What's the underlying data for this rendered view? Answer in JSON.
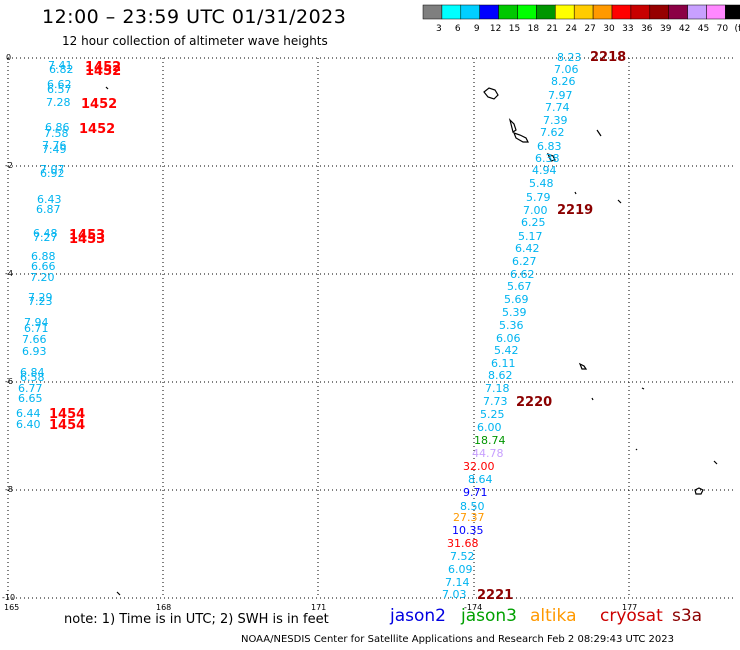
{
  "header": {
    "title": "12:00 – 23:59 UTC 01/31/2023",
    "subtitle": "12 hour collection of altimeter wave heights"
  },
  "colorbar": {
    "labels": [
      "3",
      "6",
      "9",
      "12",
      "15",
      "18",
      "21",
      "24",
      "27",
      "30",
      "33",
      "36",
      "39",
      "42",
      "45",
      "70",
      "(ft)"
    ],
    "colors": [
      "#7f7f7f",
      "#00ffff",
      "#00cfff",
      "#0000ff",
      "#00c800",
      "#00ff00",
      "#009600",
      "#ffff00",
      "#ffcc00",
      "#ff9900",
      "#ff0000",
      "#c80000",
      "#960000",
      "#8b0045",
      "#c8a0ff",
      "#ff88ff",
      "#000000"
    ]
  },
  "axes": {
    "x_ticks": [
      "165",
      "168",
      "171",
      "-174",
      "177"
    ],
    "y_ticks": [
      "0",
      "-2",
      "-4",
      "-6",
      "-8",
      "-10"
    ]
  },
  "track_west": {
    "values": [
      {
        "v": "7.41",
        "c": "#00b4f0"
      },
      {
        "v": "6.82",
        "c": "#00b4f0"
      },
      {
        "v": "6.62",
        "c": "#00b4f0"
      },
      {
        "v": "6.57",
        "c": "#00b4f0"
      },
      {
        "v": "7.28",
        "c": "#00b4f0"
      },
      {
        "v": "6.86",
        "c": "#00b4f0"
      },
      {
        "v": "7.58",
        "c": "#00b4f0"
      },
      {
        "v": "7.76",
        "c": "#00b4f0"
      },
      {
        "v": "7.49",
        "c": "#00b4f0"
      },
      {
        "v": "7.07",
        "c": "#00b4f0"
      },
      {
        "v": "6.92",
        "c": "#00b4f0"
      },
      {
        "v": "6.43",
        "c": "#00b4f0"
      },
      {
        "v": "6.87",
        "c": "#00b4f0"
      },
      {
        "v": "6.48",
        "c": "#00b4f0"
      },
      {
        "v": "7.27",
        "c": "#00b4f0"
      },
      {
        "v": "6.88",
        "c": "#00b4f0"
      },
      {
        "v": "6.66",
        "c": "#00b4f0"
      },
      {
        "v": "7.20",
        "c": "#00b4f0"
      },
      {
        "v": "7.29",
        "c": "#00b4f0"
      },
      {
        "v": "7.23",
        "c": "#00b4f0"
      },
      {
        "v": "7.94",
        "c": "#00b4f0"
      },
      {
        "v": "6.71",
        "c": "#00b4f0"
      },
      {
        "v": "7.66",
        "c": "#00b4f0"
      },
      {
        "v": "6.93",
        "c": "#00b4f0"
      },
      {
        "v": "6.84",
        "c": "#00b4f0"
      },
      {
        "v": "6.58",
        "c": "#00b4f0"
      },
      {
        "v": "6.77",
        "c": "#00b4f0"
      },
      {
        "v": "6.65",
        "c": "#00b4f0"
      },
      {
        "v": "6.44",
        "c": "#00b4f0"
      },
      {
        "v": "6.40",
        "c": "#00b4f0"
      }
    ],
    "times": [
      "1452",
      "1452",
      "1452",
      "1452",
      "1453",
      "1453",
      "1454",
      "1454"
    ]
  },
  "track_east": {
    "values": [
      {
        "v": "8.23",
        "c": "#00b4f0"
      },
      {
        "v": "7.06",
        "c": "#00b4f0"
      },
      {
        "v": "8.26",
        "c": "#00b4f0"
      },
      {
        "v": "7.97",
        "c": "#00b4f0"
      },
      {
        "v": "7.74",
        "c": "#00b4f0"
      },
      {
        "v": "7.39",
        "c": "#00b4f0"
      },
      {
        "v": "7.62",
        "c": "#00b4f0"
      },
      {
        "v": "6.83",
        "c": "#00b4f0"
      },
      {
        "v": "6.38",
        "c": "#00b4f0"
      },
      {
        "v": "4.94",
        "c": "#00b4f0"
      },
      {
        "v": "5.48",
        "c": "#00b4f0"
      },
      {
        "v": "5.79",
        "c": "#00b4f0"
      },
      {
        "v": "7.00",
        "c": "#00b4f0"
      },
      {
        "v": "6.25",
        "c": "#00b4f0"
      },
      {
        "v": "5.17",
        "c": "#00b4f0"
      },
      {
        "v": "6.42",
        "c": "#00b4f0"
      },
      {
        "v": "6.27",
        "c": "#00b4f0"
      },
      {
        "v": "6.62",
        "c": "#00b4f0"
      },
      {
        "v": "5.67",
        "c": "#00b4f0"
      },
      {
        "v": "5.69",
        "c": "#00b4f0"
      },
      {
        "v": "5.39",
        "c": "#00b4f0"
      },
      {
        "v": "5.36",
        "c": "#00b4f0"
      },
      {
        "v": "6.06",
        "c": "#00b4f0"
      },
      {
        "v": "5.42",
        "c": "#00b4f0"
      },
      {
        "v": "6.11",
        "c": "#00b4f0"
      },
      {
        "v": "8.62",
        "c": "#00b4f0"
      },
      {
        "v": "7.18",
        "c": "#00b4f0"
      },
      {
        "v": "7.73",
        "c": "#00b4f0"
      },
      {
        "v": "5.25",
        "c": "#00b4f0"
      },
      {
        "v": "6.00",
        "c": "#00b4f0"
      },
      {
        "v": "18.74",
        "c": "#009600"
      },
      {
        "v": "44.78",
        "c": "#c8a0ff"
      },
      {
        "v": "32.00",
        "c": "#ff0000"
      },
      {
        "v": "8.64",
        "c": "#00b4f0"
      },
      {
        "v": "9.71",
        "c": "#0000ff"
      },
      {
        "v": "8.50",
        "c": "#00b4f0"
      },
      {
        "v": "27.37",
        "c": "#ff9900"
      },
      {
        "v": "10.35",
        "c": "#0000ff"
      },
      {
        "v": "31.68",
        "c": "#ff0000"
      },
      {
        "v": "7.52",
        "c": "#00b4f0"
      },
      {
        "v": "6.09",
        "c": "#00b4f0"
      },
      {
        "v": "7.14",
        "c": "#00b4f0"
      },
      {
        "v": "7.03",
        "c": "#00b4f0"
      }
    ],
    "times": [
      "2218",
      "2219",
      "2220",
      "2221"
    ]
  },
  "note": "note:  1) Time is in UTC; 2) SWH is in feet",
  "satellites": [
    {
      "name": "jason2",
      "color": "#0000e0"
    },
    {
      "name": "jason3",
      "color": "#00a000"
    },
    {
      "name": "altika",
      "color": "#ff9900"
    },
    {
      "name": "cryosat",
      "color": "#cc0000"
    },
    {
      "name": "s3a",
      "color": "#8b0000"
    }
  ],
  "footer": "NOAA/NESDIS Center for Satellite Applications and Research    Feb  2 08:29:43 UTC 2023"
}
